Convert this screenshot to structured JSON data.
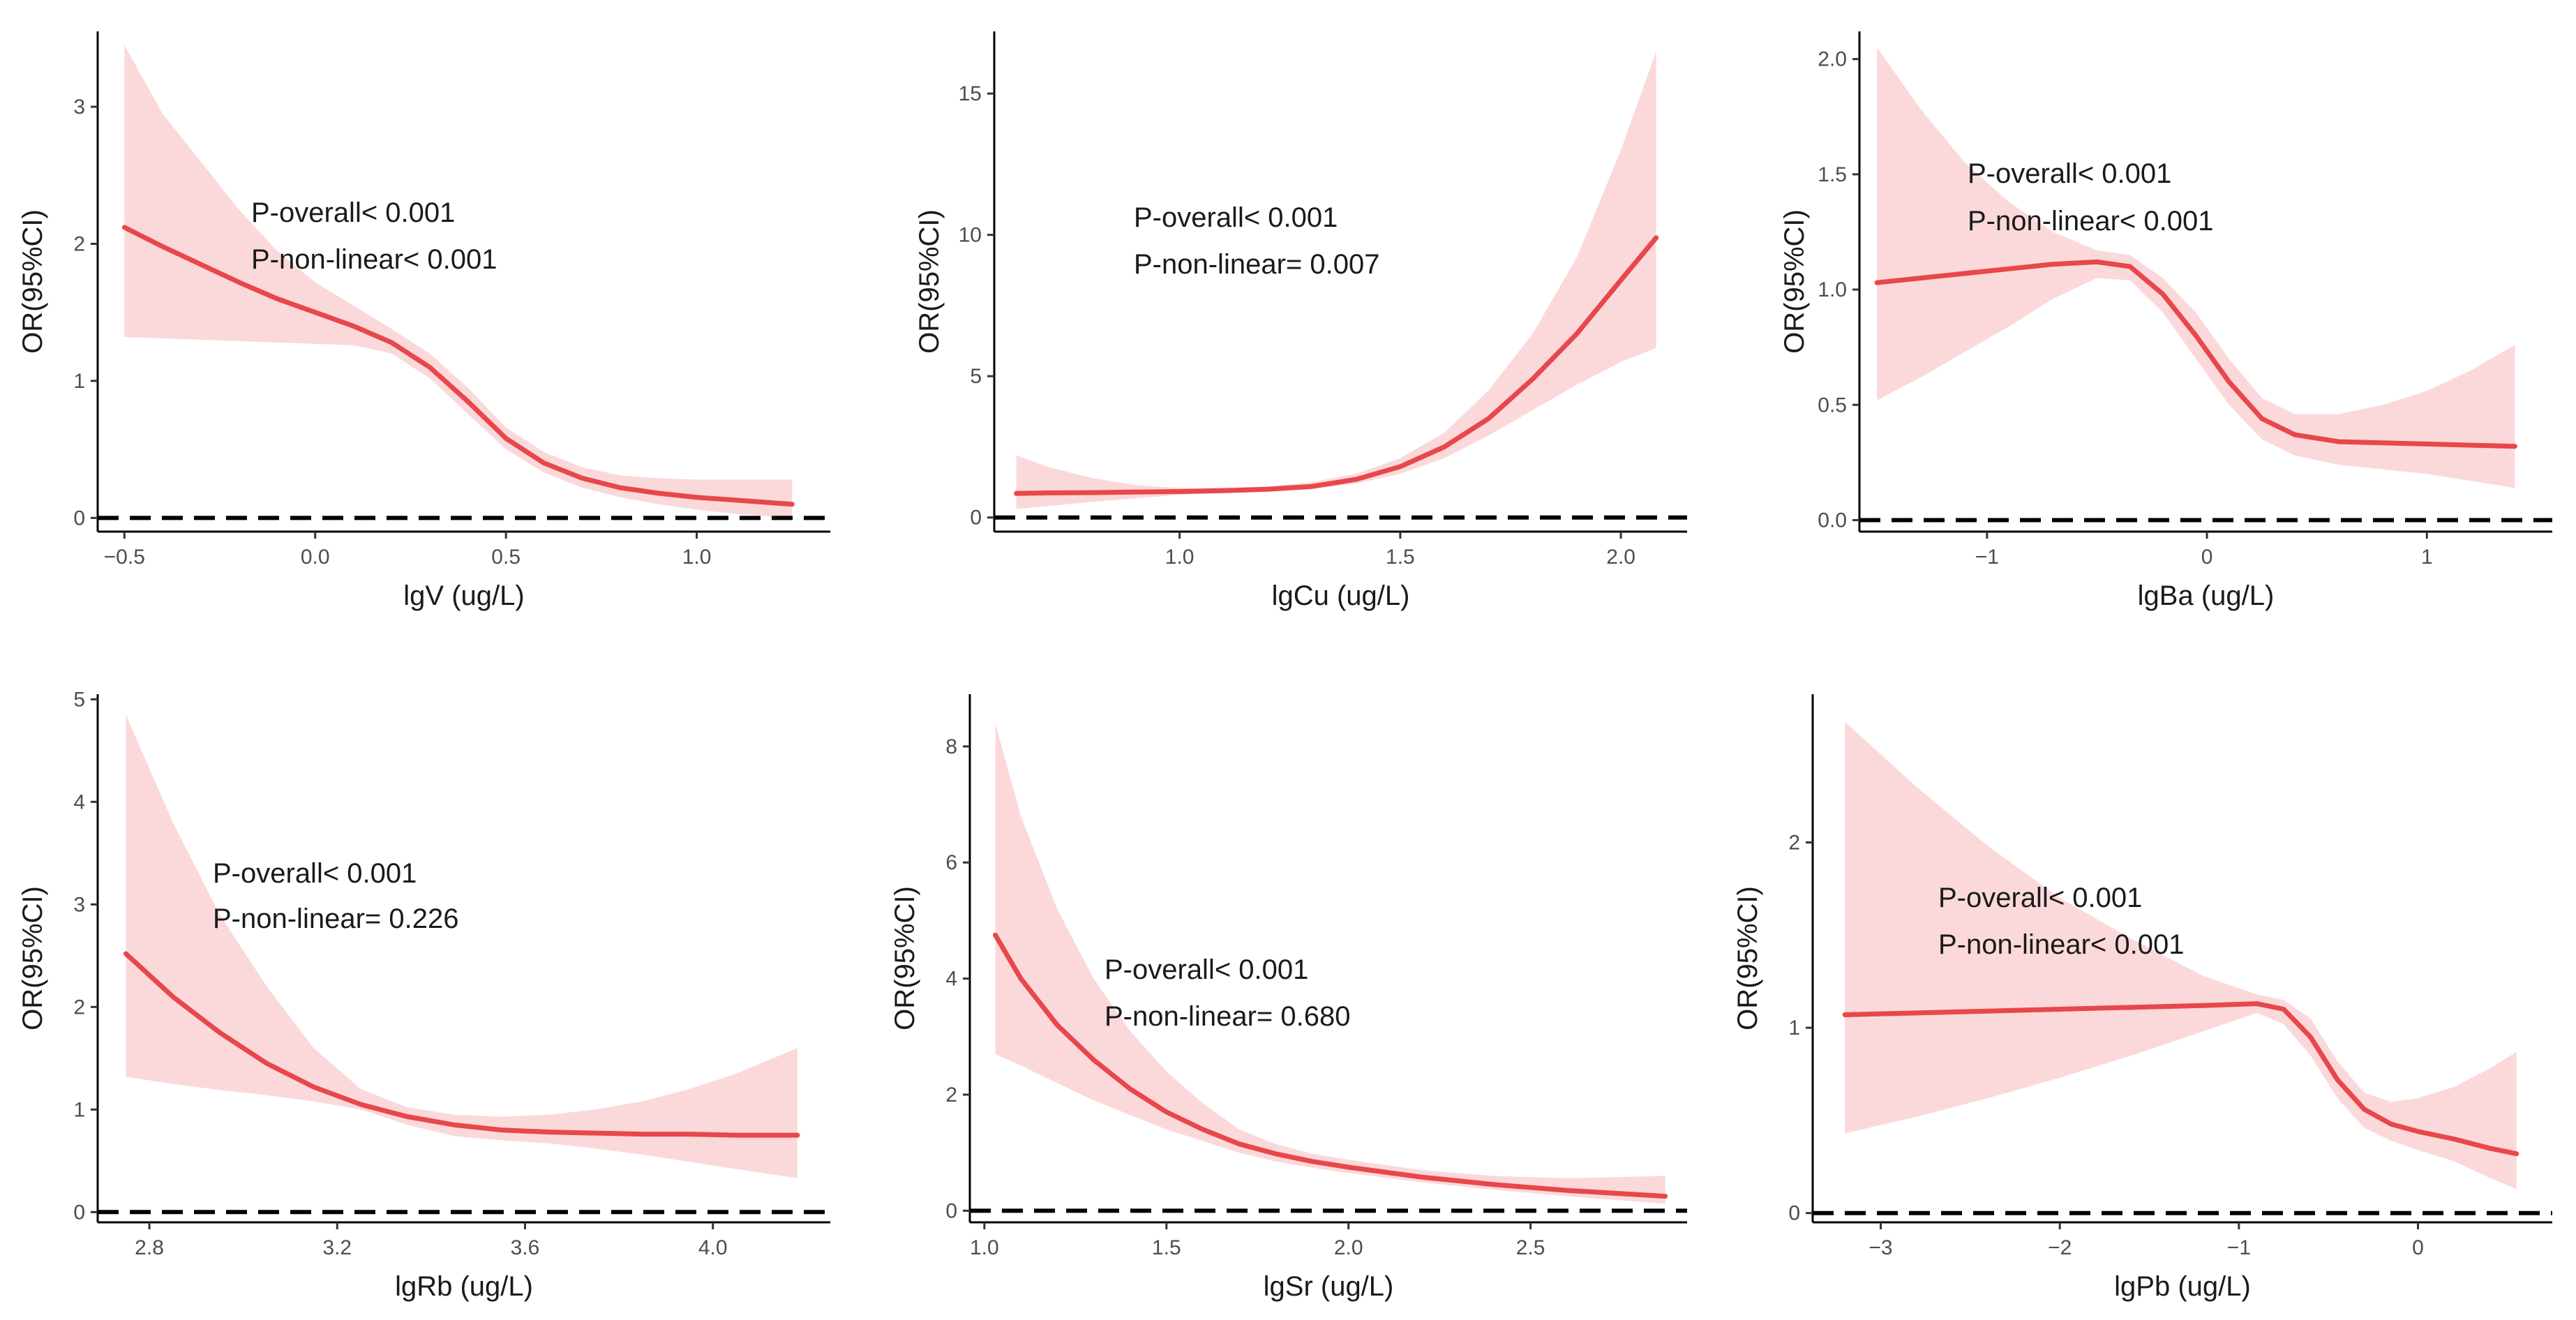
{
  "chart_data": [
    {
      "type": "line",
      "xlabel": "lgV (ug/L)",
      "ylabel": "OR(95%CI)",
      "xlim": [
        -0.57,
        1.35
      ],
      "ylim": [
        -0.1,
        3.55
      ],
      "xticks": [
        -0.5,
        0.0,
        0.5,
        1.0
      ],
      "xtick_labels": [
        "−0.5",
        "0.0",
        "0.5",
        "1.0"
      ],
      "yticks": [
        0,
        1,
        2,
        3
      ],
      "ytick_labels": [
        "0",
        "1",
        "2",
        "3"
      ],
      "reference_line": 0,
      "annotations": [
        "P-overall< 0.001",
        "P-non-linear< 0.001"
      ],
      "series": [
        {
          "x": [
            -0.5,
            -0.4,
            -0.3,
            -0.2,
            -0.1,
            0.0,
            0.1,
            0.2,
            0.3,
            0.4,
            0.5,
            0.6,
            0.7,
            0.8,
            0.9,
            1.0,
            1.1,
            1.25
          ],
          "y": [
            2.12,
            1.98,
            1.85,
            1.72,
            1.6,
            1.5,
            1.4,
            1.28,
            1.1,
            0.85,
            0.58,
            0.4,
            0.29,
            0.22,
            0.18,
            0.15,
            0.13,
            0.1
          ],
          "lower": [
            1.32,
            1.31,
            1.3,
            1.29,
            1.28,
            1.27,
            1.26,
            1.2,
            1.02,
            0.76,
            0.5,
            0.33,
            0.22,
            0.15,
            0.1,
            0.06,
            0.03,
            0.0
          ],
          "upper": [
            3.45,
            2.95,
            2.6,
            2.25,
            1.95,
            1.72,
            1.55,
            1.38,
            1.2,
            0.95,
            0.66,
            0.48,
            0.37,
            0.31,
            0.29,
            0.28,
            0.28,
            0.28
          ]
        }
      ]
    },
    {
      "type": "line",
      "xlabel": "lgCu (ug/L)",
      "ylabel": "OR(95%CI)",
      "xlim": [
        0.58,
        2.15
      ],
      "ylim": [
        -0.5,
        17.2
      ],
      "xticks": [
        1.0,
        1.5,
        2.0
      ],
      "xtick_labels": [
        "1.0",
        "1.5",
        "2.0"
      ],
      "yticks": [
        0,
        5,
        10,
        15
      ],
      "ytick_labels": [
        "0",
        "5",
        "10",
        "15"
      ],
      "reference_line": 0,
      "annotations": [
        "P-overall< 0.001",
        "P-non-linear= 0.007"
      ],
      "series": [
        {
          "x": [
            0.63,
            0.7,
            0.8,
            0.9,
            1.0,
            1.1,
            1.2,
            1.3,
            1.4,
            1.5,
            1.6,
            1.7,
            1.8,
            1.9,
            2.0,
            2.08
          ],
          "y": [
            0.85,
            0.87,
            0.88,
            0.9,
            0.92,
            0.95,
            1.0,
            1.1,
            1.35,
            1.8,
            2.5,
            3.5,
            4.9,
            6.5,
            8.4,
            9.9
          ],
          "lower": [
            0.3,
            0.4,
            0.55,
            0.68,
            0.8,
            0.87,
            0.92,
            1.0,
            1.2,
            1.55,
            2.1,
            2.9,
            3.8,
            4.7,
            5.5,
            6.0
          ],
          "upper": [
            2.2,
            1.8,
            1.4,
            1.15,
            1.05,
            1.05,
            1.1,
            1.25,
            1.55,
            2.1,
            3.0,
            4.5,
            6.5,
            9.2,
            13.0,
            16.5
          ]
        }
      ]
    },
    {
      "type": "line",
      "xlabel": "lgBa (ug/L)",
      "ylabel": "OR(95%CI)",
      "xlim": [
        -1.58,
        1.57
      ],
      "ylim": [
        -0.05,
        2.12
      ],
      "xticks": [
        -1,
        0,
        1
      ],
      "xtick_labels": [
        "−1",
        "0",
        "1"
      ],
      "yticks": [
        0.0,
        0.5,
        1.0,
        1.5,
        2.0
      ],
      "ytick_labels": [
        "0.0",
        "0.5",
        "1.0",
        "1.5",
        "2.0"
      ],
      "reference_line": 0,
      "annotations": [
        "P-overall< 0.001",
        "P-non-linear< 0.001"
      ],
      "series": [
        {
          "x": [
            -1.5,
            -1.3,
            -1.1,
            -0.9,
            -0.7,
            -0.5,
            -0.35,
            -0.2,
            -0.05,
            0.1,
            0.25,
            0.4,
            0.6,
            0.8,
            1.0,
            1.2,
            1.4
          ],
          "y": [
            1.03,
            1.05,
            1.07,
            1.09,
            1.11,
            1.12,
            1.1,
            0.98,
            0.8,
            0.6,
            0.44,
            0.37,
            0.34,
            0.335,
            0.33,
            0.325,
            0.32
          ],
          "lower": [
            0.52,
            0.62,
            0.73,
            0.84,
            0.96,
            1.05,
            1.04,
            0.9,
            0.7,
            0.5,
            0.35,
            0.28,
            0.24,
            0.22,
            0.2,
            0.17,
            0.14
          ],
          "upper": [
            2.05,
            1.78,
            1.55,
            1.38,
            1.25,
            1.17,
            1.15,
            1.05,
            0.9,
            0.7,
            0.53,
            0.46,
            0.46,
            0.5,
            0.56,
            0.65,
            0.76
          ]
        }
      ]
    },
    {
      "type": "line",
      "xlabel": "lgRb (ug/L)",
      "ylabel": "OR(95%CI)",
      "xlim": [
        2.69,
        4.25
      ],
      "ylim": [
        -0.1,
        5.05
      ],
      "xticks": [
        2.8,
        3.2,
        3.6,
        4.0
      ],
      "xtick_labels": [
        "2.8",
        "3.2",
        "3.6",
        "4.0"
      ],
      "yticks": [
        0,
        1,
        2,
        3,
        4,
        5
      ],
      "ytick_labels": [
        "0",
        "1",
        "2",
        "3",
        "4",
        "5"
      ],
      "reference_line": 0,
      "annotations": [
        "P-overall< 0.001",
        "P-non-linear= 0.226"
      ],
      "series": [
        {
          "x": [
            2.75,
            2.85,
            2.95,
            3.05,
            3.15,
            3.25,
            3.35,
            3.45,
            3.55,
            3.65,
            3.75,
            3.85,
            3.95,
            4.05,
            4.18
          ],
          "y": [
            2.52,
            2.1,
            1.75,
            1.45,
            1.22,
            1.05,
            0.93,
            0.85,
            0.8,
            0.78,
            0.77,
            0.76,
            0.76,
            0.75,
            0.75
          ],
          "lower": [
            1.32,
            1.25,
            1.19,
            1.14,
            1.08,
            1.0,
            0.85,
            0.74,
            0.7,
            0.67,
            0.62,
            0.56,
            0.49,
            0.42,
            0.33
          ],
          "upper": [
            4.85,
            3.8,
            2.9,
            2.2,
            1.6,
            1.2,
            1.02,
            0.95,
            0.93,
            0.95,
            1.0,
            1.08,
            1.2,
            1.35,
            1.6
          ]
        }
      ]
    },
    {
      "type": "line",
      "xlabel": "lgSr (ug/L)",
      "ylabel": "OR(95%CI)",
      "xlim": [
        0.96,
        2.93
      ],
      "ylim": [
        -0.2,
        8.9
      ],
      "xticks": [
        1.0,
        1.5,
        2.0,
        2.5
      ],
      "xtick_labels": [
        "1.0",
        "1.5",
        "2.0",
        "2.5"
      ],
      "yticks": [
        0,
        2,
        4,
        6,
        8
      ],
      "ytick_labels": [
        "0",
        "2",
        "4",
        "6",
        "8"
      ],
      "reference_line": 0,
      "annotations": [
        "P-overall< 0.001",
        "P-non-linear= 0.680"
      ],
      "series": [
        {
          "x": [
            1.03,
            1.1,
            1.2,
            1.3,
            1.4,
            1.5,
            1.6,
            1.7,
            1.8,
            1.9,
            2.0,
            2.2,
            2.4,
            2.6,
            2.87
          ],
          "y": [
            4.75,
            4.0,
            3.2,
            2.6,
            2.1,
            1.7,
            1.4,
            1.15,
            0.98,
            0.85,
            0.75,
            0.58,
            0.45,
            0.35,
            0.25
          ],
          "lower": [
            2.7,
            2.5,
            2.2,
            1.9,
            1.65,
            1.4,
            1.2,
            1.0,
            0.85,
            0.74,
            0.65,
            0.49,
            0.36,
            0.25,
            0.12
          ],
          "upper": [
            8.4,
            6.8,
            5.2,
            4.0,
            3.1,
            2.4,
            1.85,
            1.4,
            1.15,
            0.98,
            0.88,
            0.7,
            0.6,
            0.56,
            0.6
          ]
        }
      ]
    },
    {
      "type": "line",
      "xlabel": "lgPb (ug/L)",
      "ylabel": "OR(95%CI)",
      "xlim": [
        -3.38,
        0.75
      ],
      "ylim": [
        -0.05,
        2.8
      ],
      "xticks": [
        -3,
        -2,
        -1,
        0
      ],
      "xtick_labels": [
        "−3",
        "−2",
        "−1",
        "0"
      ],
      "yticks": [
        0,
        1,
        2
      ],
      "ytick_labels": [
        "0",
        "1",
        "2"
      ],
      "reference_line": 0,
      "annotations": [
        "P-overall< 0.001",
        "P-non-linear< 0.001"
      ],
      "series": [
        {
          "x": [
            -3.2,
            -2.8,
            -2.4,
            -2.0,
            -1.6,
            -1.2,
            -0.9,
            -0.75,
            -0.6,
            -0.45,
            -0.3,
            -0.15,
            0.0,
            0.2,
            0.4,
            0.55
          ],
          "y": [
            1.07,
            1.08,
            1.09,
            1.1,
            1.11,
            1.12,
            1.13,
            1.1,
            0.95,
            0.72,
            0.56,
            0.48,
            0.44,
            0.4,
            0.35,
            0.32
          ],
          "lower": [
            0.43,
            0.52,
            0.62,
            0.73,
            0.85,
            0.98,
            1.08,
            1.02,
            0.85,
            0.62,
            0.46,
            0.39,
            0.34,
            0.28,
            0.19,
            0.13
          ],
          "upper": [
            2.65,
            2.3,
            1.98,
            1.7,
            1.48,
            1.28,
            1.18,
            1.15,
            1.05,
            0.82,
            0.65,
            0.6,
            0.62,
            0.68,
            0.78,
            0.87
          ]
        }
      ]
    }
  ]
}
